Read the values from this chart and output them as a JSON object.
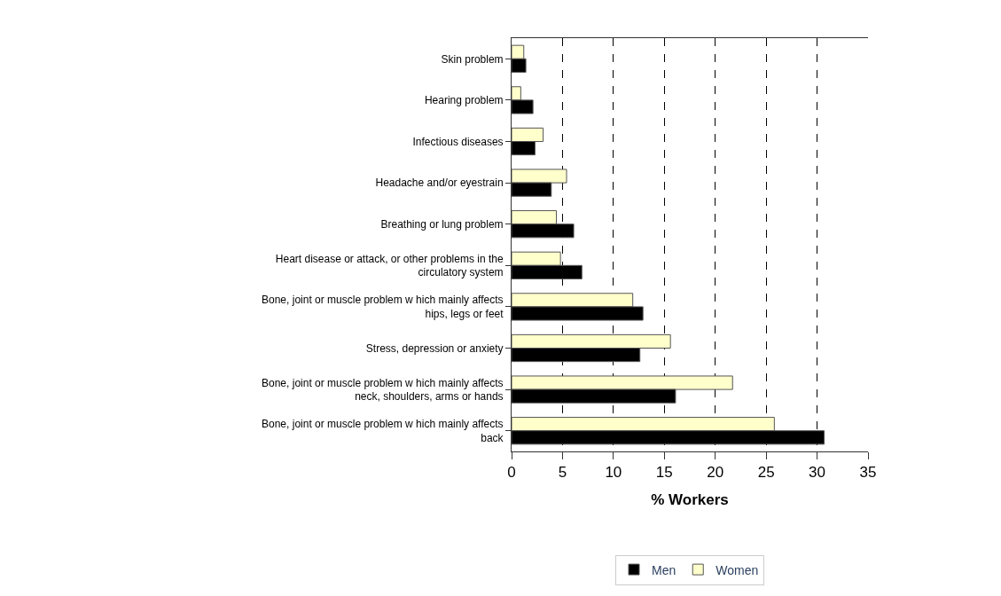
{
  "chart_data": {
    "type": "bar",
    "orientation": "horizontal",
    "categories": [
      "Skin problem",
      "Hearing problem",
      "Infectious diseases",
      "Headache and/or eyestrain",
      "Breathing or lung problem",
      "Heart disease or attack, or other problems in the\ncirculatory system",
      "Bone, joint or muscle problem w hich mainly affects\nhips, legs or feet",
      "Stress, depression or anxiety",
      "Bone, joint or muscle problem w hich mainly affects\nneck, shoulders, arms or hands",
      "Bone, joint or muscle problem w hich mainly affects\nback"
    ],
    "series": [
      {
        "name": "Men",
        "color": "#000000",
        "values": [
          1.4,
          2.1,
          2.3,
          3.9,
          6.1,
          6.9,
          12.9,
          12.6,
          16.1,
          30.7
        ]
      },
      {
        "name": "Women",
        "color": "#ffffcc",
        "values": [
          1.2,
          0.9,
          3.1,
          5.4,
          4.4,
          4.8,
          11.9,
          15.6,
          21.7,
          25.8
        ]
      }
    ],
    "xlabel": "% Workers",
    "xlim": [
      0,
      35
    ],
    "xticks": [
      0,
      5,
      10,
      15,
      20,
      25,
      30,
      35
    ],
    "grid": "x",
    "line_style": "dashed",
    "legend": "bottom"
  }
}
